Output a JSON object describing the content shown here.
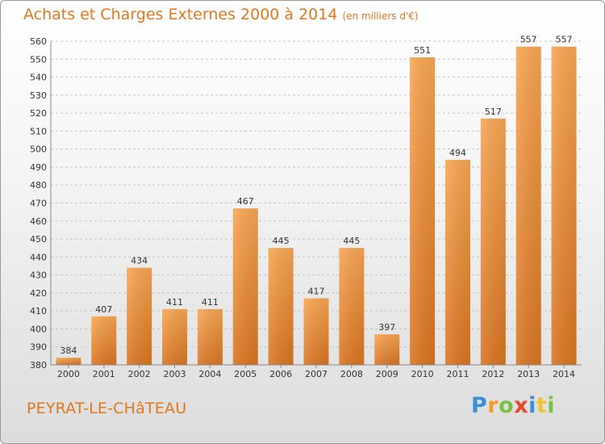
{
  "title": "Achats et Charges Externes 2000 à 2014",
  "unit_note": "(en milliers d'€)",
  "commune": "PEYRAT-LE-CHâTEAU",
  "logo": {
    "letters": [
      "P",
      "r",
      "o",
      "x",
      "i",
      "t",
      "i"
    ],
    "colors": [
      "#3a8fd8",
      "#f39c23",
      "#7cc242",
      "#e8442e",
      "#3a8fd8",
      "#f2c230",
      "#7cc242"
    ]
  },
  "colors": {
    "bar_light": "#f7a552",
    "bar_dark": "#d87420",
    "accent": "#e0781e"
  },
  "chart_data": {
    "type": "bar",
    "categories": [
      "2000",
      "2001",
      "2002",
      "2003",
      "2004",
      "2005",
      "2006",
      "2007",
      "2008",
      "2009",
      "2010",
      "2011",
      "2012",
      "2013",
      "2014"
    ],
    "values": [
      384,
      407,
      434,
      411,
      411,
      467,
      445,
      417,
      445,
      397,
      551,
      494,
      517,
      557,
      557
    ],
    "title": "Achats et Charges Externes 2000 à 2014",
    "ylim": [
      380,
      560
    ],
    "yticks": [
      380,
      390,
      400,
      410,
      420,
      430,
      440,
      450,
      460,
      470,
      480,
      490,
      500,
      510,
      520,
      530,
      540,
      550,
      560
    ],
    "grid": true
  }
}
